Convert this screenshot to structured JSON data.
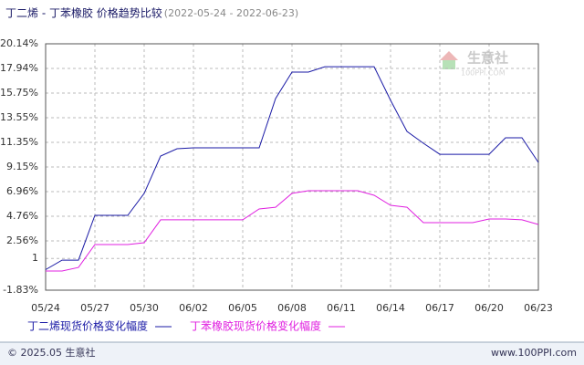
{
  "chart_data": {
    "type": "line",
    "title": "丁二烯 - 丁苯橡胶 价格趋势比较",
    "subtitle": "(2022-05-24 - 2022-06-23)",
    "categories": [
      "05/24",
      null,
      null,
      "05/27",
      null,
      null,
      "05/30",
      null,
      null,
      "06/02",
      null,
      null,
      "06/05",
      null,
      null,
      "06/08",
      null,
      null,
      "06/11",
      null,
      null,
      "06/14",
      null,
      null,
      "06/17",
      null,
      null,
      "06/20",
      null,
      null,
      "06/23"
    ],
    "series": [
      {
        "name": "丁二烯现货价格变化幅度",
        "color": "#1a1aa6",
        "values": [
          0,
          0.85,
          0.85,
          4.84,
          4.84,
          4.84,
          6.8,
          10.13,
          10.78,
          10.86,
          10.86,
          10.86,
          10.86,
          10.86,
          15.26,
          17.62,
          17.62,
          18.1,
          18.1,
          18.1,
          18.1,
          15.1,
          12.33,
          11.27,
          10.29,
          10.29,
          10.29,
          10.29,
          11.76,
          11.76,
          9.56
        ]
      },
      {
        "name": "丁苯橡胶现货价格变化幅度",
        "color": "#e020e0",
        "values": [
          -0.12,
          -0.12,
          0.2,
          2.24,
          2.24,
          2.24,
          2.4,
          4.44,
          4.44,
          4.44,
          4.44,
          4.44,
          4.44,
          5.41,
          5.57,
          6.8,
          7.04,
          7.04,
          7.04,
          7.04,
          6.63,
          5.74,
          5.57,
          4.19,
          4.19,
          4.19,
          4.19,
          4.52,
          4.52,
          4.44,
          4.03
        ]
      }
    ],
    "ylim": [
      -1.83,
      20.14
    ],
    "yticks": [
      {
        "value": -1.83,
        "label": "-1.83%"
      },
      1,
      {
        "value": 2.56,
        "label": "2.56%"
      },
      {
        "value": 4.76,
        "label": "4.76%"
      },
      {
        "value": 6.96,
        "label": "6.96%"
      },
      {
        "value": 9.15,
        "label": "9.15%"
      },
      {
        "value": 11.35,
        "label": "11.35%"
      },
      {
        "value": 13.55,
        "label": "13.55%"
      },
      {
        "value": 15.75,
        "label": "15.75%"
      },
      {
        "value": 17.94,
        "label": "17.94%"
      },
      {
        "value": 20.14,
        "label": "20.14%"
      }
    ],
    "grid": true,
    "watermark": [
      "生意社",
      "100PPI.COM"
    ],
    "footer_left": "© 2025.05 生意社",
    "footer_right": "www.100PPI.com"
  }
}
